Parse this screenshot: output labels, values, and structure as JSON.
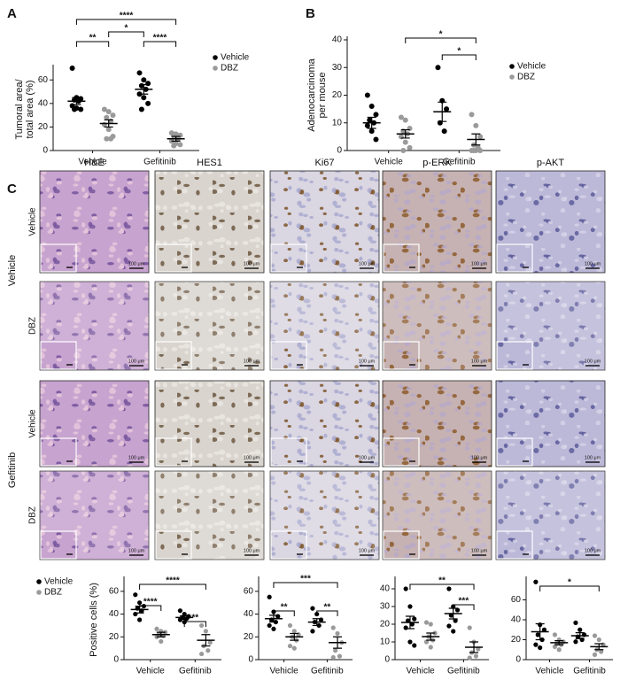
{
  "chart_data": [
    {
      "type": "dot",
      "panel": "A",
      "ylabel": [
        "Tumoral area/",
        "total area (%)"
      ],
      "categories": [
        "Vehicle",
        "Gefitinib"
      ],
      "ylim": [
        0,
        70
      ],
      "yticks": [
        0,
        20,
        40,
        60
      ],
      "legend": "right",
      "series": [
        {
          "name": "Vehicle",
          "color": "#000000",
          "values": [
            [
              70,
              45,
              44,
              43,
              42,
              38,
              36,
              35,
              35
            ],
            [
              66,
              60,
              57,
              55,
              52,
              48,
              45,
              40,
              35
            ]
          ],
          "mean": [
            42,
            52
          ],
          "sem": [
            3,
            4
          ]
        },
        {
          "name": "DBZ",
          "color": "#9a9a9a",
          "values": [
            [
              35,
              33,
              30,
              28,
              25,
              22,
              18,
              12,
              10,
              10
            ],
            [
              15,
              14,
              13,
              12,
              10,
              8,
              6,
              5,
              4
            ]
          ],
          "mean": [
            23,
            10
          ],
          "sem": [
            3,
            2
          ]
        }
      ],
      "annotations": [
        "****",
        "**",
        "*",
        "****"
      ]
    },
    {
      "type": "dot",
      "panel": "B",
      "ylabel": [
        "Adenocarcinoma",
        "per mouse"
      ],
      "categories": [
        "Vehicle",
        "Gefitinib"
      ],
      "ylim": [
        0,
        40
      ],
      "yticks": [
        0,
        10,
        20,
        30,
        40
      ],
      "legend": "right",
      "series": [
        {
          "name": "Vehicle",
          "color": "#000000",
          "values": [
            [
              20,
              16,
              13,
              11,
              10,
              9,
              7,
              4
            ],
            [
              30,
              18,
              15,
              10,
              7
            ]
          ],
          "mean": [
            10,
            14
          ],
          "sem": [
            2,
            3.5
          ]
        },
        {
          "name": "DBZ",
          "color": "#9a9a9a",
          "values": [
            [
              12,
              11,
              8,
              7,
              6,
              5,
              3,
              1,
              0
            ],
            [
              13,
              9,
              5,
              2,
              1,
              0,
              0,
              0,
              0
            ]
          ],
          "mean": [
            6,
            4
          ],
          "sem": [
            1.5,
            2
          ]
        }
      ],
      "annotations": [
        "*",
        "*"
      ]
    },
    {
      "type": "dot",
      "ylabel": [
        "Positive cells (%)"
      ],
      "categories": [
        "Vehicle",
        "Gefitinib"
      ],
      "ylim": [
        0,
        70
      ],
      "yticks": [
        0,
        20,
        40,
        60
      ],
      "legend": "left",
      "series": [
        {
          "name": "Vehicle",
          "color": "#000000",
          "values": [
            [
              57,
              50,
              47,
              45,
              43,
              40,
              35
            ],
            [
              43,
              40,
              38,
              37,
              36,
              35,
              33
            ]
          ],
          "mean": [
            44,
            37
          ],
          "sem": [
            3,
            1.5
          ]
        },
        {
          "name": "DBZ",
          "color": "#9a9a9a",
          "values": [
            [
              27,
              25,
              24,
              22,
              21,
              20,
              16
            ],
            [
              30,
              25,
              15,
              12,
              8,
              5
            ]
          ],
          "mean": [
            22,
            17
          ],
          "sem": [
            2,
            5
          ]
        }
      ],
      "annotations": [
        "****",
        "****",
        "**"
      ]
    },
    {
      "type": "dot",
      "categories": [
        "Vehicle",
        "Gefitinib"
      ],
      "ylim": [
        0,
        70
      ],
      "yticks": [
        0,
        20,
        40,
        60
      ],
      "series": [
        {
          "name": "Vehicle",
          "color": "#000000",
          "values": [
            [
              55,
              42,
              38,
              35,
              33,
              30,
              27
            ],
            [
              45,
              40,
              35,
              33,
              30,
              25
            ]
          ],
          "mean": [
            36,
            33
          ],
          "sem": [
            3,
            3
          ]
        },
        {
          "name": "DBZ",
          "color": "#9a9a9a",
          "values": [
            [
              30,
              25,
              22,
              20,
              17,
              12,
              10
            ],
            [
              28,
              23,
              15,
              8,
              3,
              2
            ]
          ],
          "mean": [
            20,
            15
          ],
          "sem": [
            3,
            5
          ]
        }
      ],
      "annotations": [
        "***",
        "**",
        "**"
      ]
    },
    {
      "type": "dot",
      "categories": [
        "Vehicle",
        "Gefitinib"
      ],
      "ylim": [
        0,
        45
      ],
      "yticks": [
        0,
        10,
        20,
        30,
        40
      ],
      "series": [
        {
          "name": "Vehicle",
          "color": "#000000",
          "values": [
            [
              40,
              30,
              23,
              22,
              20,
              18,
              10,
              8
            ],
            [
              40,
              30,
              28,
              25,
              22,
              19,
              16
            ]
          ],
          "mean": [
            21,
            26
          ],
          "sem": [
            3.5,
            3
          ]
        },
        {
          "name": "DBZ",
          "color": "#9a9a9a",
          "values": [
            [
              21,
              20,
              15,
              13,
              11,
              10,
              7
            ],
            [
              18,
              10,
              6,
              4,
              2,
              1
            ]
          ],
          "mean": [
            13,
            7
          ],
          "sem": [
            2,
            3
          ]
        }
      ],
      "annotations": [
        "**",
        "***"
      ]
    },
    {
      "type": "dot",
      "categories": [
        "Vehicle",
        "Gefitinib"
      ],
      "ylim": [
        0,
        80
      ],
      "yticks": [
        0,
        20,
        40,
        60
      ],
      "series": [
        {
          "name": "Vehicle",
          "color": "#000000",
          "values": [
            [
              78,
              35,
              30,
              25,
              20,
              15,
              12
            ],
            [
              37,
              30,
              25,
              23,
              20,
              18
            ]
          ],
          "mean": [
            28,
            24
          ],
          "sem": [
            8,
            3
          ]
        },
        {
          "name": "DBZ",
          "color": "#9a9a9a",
          "values": [
            [
              25,
              20,
              18,
              16,
              15,
              13,
              10
            ],
            [
              24,
              20,
              15,
              10,
              8,
              5
            ]
          ],
          "mean": [
            17,
            13
          ],
          "sem": [
            2,
            3
          ]
        }
      ],
      "annotations": [
        "*"
      ]
    }
  ],
  "micrographs": {
    "panel": "C",
    "columns": [
      "H&E",
      "HES1",
      "Ki67",
      "p-ERK",
      "p-AKT"
    ],
    "groups": [
      {
        "label": "Vehicle",
        "rows": [
          "Vehicle",
          "DBZ"
        ]
      },
      {
        "label": "Gefitinib",
        "rows": [
          "Vehicle",
          "DBZ"
        ]
      }
    ],
    "scale_label": "100 μm"
  }
}
